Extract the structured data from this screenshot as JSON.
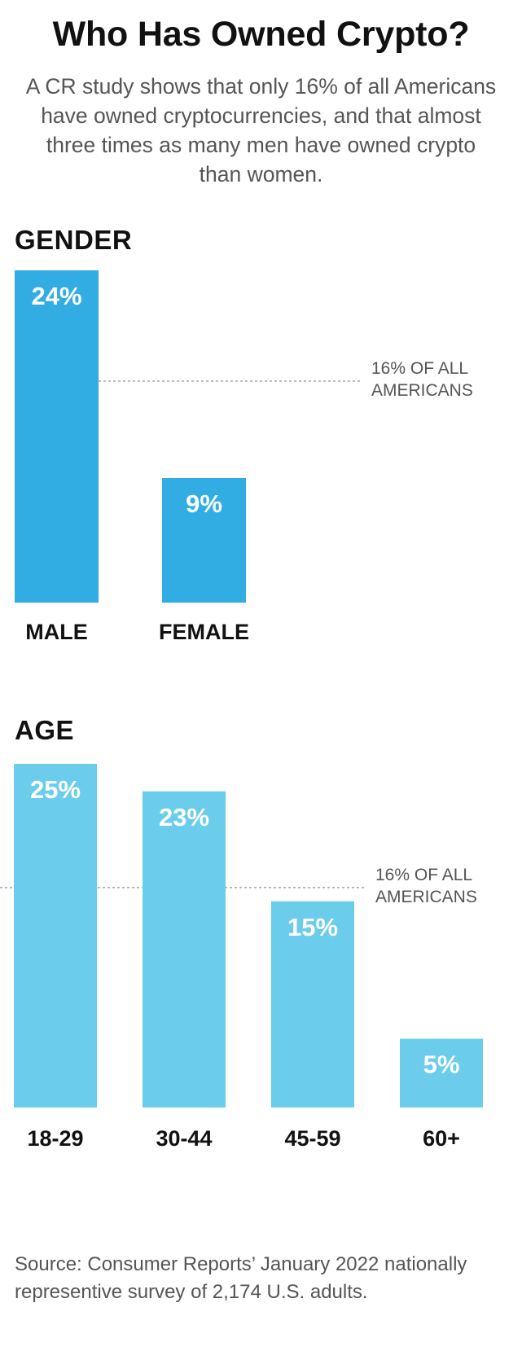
{
  "title": "Who Has Owned Crypto?",
  "subtitle": "A CR study shows that only 16% of all Americans have owned cryptocurrencies, and that almost three times as many men have owned crypto than women.",
  "source": "Source: Consumer Reports’ January 2022 nationally representive survey of 2,174 U.S. adults.",
  "chart_data": [
    {
      "type": "bar",
      "title": "GENDER",
      "categories": [
        "MALE",
        "FEMALE"
      ],
      "values": [
        24,
        9
      ],
      "value_labels": [
        "24%",
        "9%"
      ],
      "ylim": [
        0,
        25
      ],
      "reference_value": 16,
      "reference_label": [
        "16% OF ALL",
        "AMERICANS"
      ],
      "bar_color": "#31ade3",
      "grid": false
    },
    {
      "type": "bar",
      "title": "AGE",
      "categories": [
        "18-29",
        "30-44",
        "45-59",
        "60+"
      ],
      "values": [
        25,
        23,
        15,
        5
      ],
      "value_labels": [
        "25%",
        "23%",
        "15%",
        "5%"
      ],
      "ylim": [
        0,
        25
      ],
      "reference_value": 16,
      "reference_label": [
        "16% OF ALL",
        "AMERICANS"
      ],
      "bar_color": "#6bcdeb",
      "grid": false
    }
  ],
  "colors": {
    "text": "#111111",
    "muted_text": "#555555",
    "reference_line": "#999999",
    "bar_label": "#ffffff"
  }
}
